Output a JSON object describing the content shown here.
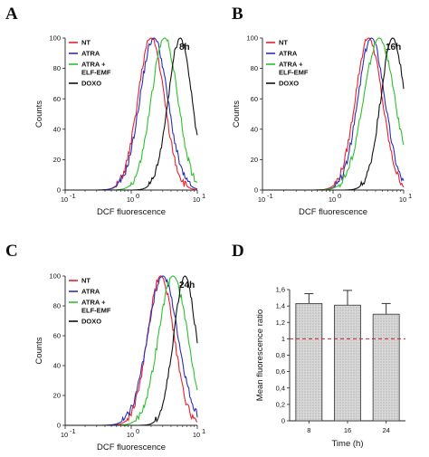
{
  "colors": {
    "NT": "#e8202a",
    "ATRA": "#2b2fb8",
    "ATRA_ELF": "#2fbf2f",
    "DOXO": "#111111",
    "bar_fill": "#d8d8d8",
    "reference_line": "#d42020"
  },
  "chart_data": [
    {
      "panel": "A",
      "type": "line",
      "time_label": "8h",
      "xlabel": "DCF fluorescence",
      "ylabel": "Counts",
      "x_scale": "log",
      "xlim": [
        0.1,
        10
      ],
      "ylim": [
        0,
        100
      ],
      "x_ticks": [
        "10",
        "10",
        "10"
      ],
      "x_tick_exponents": [
        "-1",
        "0",
        "1"
      ],
      "y_ticks": [
        "0",
        "20",
        "40",
        "60",
        "80",
        "100"
      ],
      "grid": false,
      "legend_position": "top-left",
      "series": [
        {
          "name": "NT",
          "color_key": "NT",
          "peak": 2.0,
          "width": 0.2,
          "peak_count": 100
        },
        {
          "name": "ATRA",
          "color_key": "ATRA",
          "peak": 2.2,
          "width": 0.21,
          "peak_count": 100
        },
        {
          "name": "ATRA + ELF-EMF",
          "legend_lines": [
            "ATRA +",
            "ELF-EMF"
          ],
          "color_key": "ATRA_ELF",
          "peak": 3.2,
          "width": 0.2,
          "peak_count": 100
        },
        {
          "name": "DOXO",
          "color_key": "DOXO",
          "peak": 5.5,
          "width": 0.18,
          "peak_count": 100
        }
      ]
    },
    {
      "panel": "B",
      "type": "line",
      "time_label": "16h",
      "xlabel": "DCF fluorescence",
      "ylabel": "Counts",
      "x_scale": "log",
      "xlim": [
        0.1,
        10
      ],
      "ylim": [
        0,
        100
      ],
      "x_ticks": [
        "10",
        "10",
        "10"
      ],
      "x_tick_exponents": [
        "-1",
        "0",
        "1"
      ],
      "y_ticks": [
        "0",
        "20",
        "40",
        "60",
        "80",
        "100"
      ],
      "grid": false,
      "legend_position": "top-left",
      "series": [
        {
          "name": "NT",
          "color_key": "NT",
          "peak": 3.2,
          "width": 0.19,
          "peak_count": 100
        },
        {
          "name": "ATRA",
          "color_key": "ATRA",
          "peak": 3.5,
          "width": 0.19,
          "peak_count": 100
        },
        {
          "name": "ATRA + ELF-EMF",
          "legend_lines": [
            "ATRA +",
            "ELF-EMF"
          ],
          "color_key": "ATRA_ELF",
          "peak": 4.5,
          "width": 0.22,
          "peak_count": 100
        },
        {
          "name": "DOXO",
          "color_key": "DOXO",
          "peak": 7.0,
          "width": 0.17,
          "peak_count": 100
        }
      ]
    },
    {
      "panel": "C",
      "type": "line",
      "time_label": "24h",
      "xlabel": "DCF fluorescence",
      "ylabel": "Counts",
      "x_scale": "log",
      "xlim": [
        0.1,
        10
      ],
      "ylim": [
        0,
        100
      ],
      "x_ticks": [
        "10",
        "10",
        "10"
      ],
      "x_tick_exponents": [
        "-1",
        "0",
        "1"
      ],
      "y_ticks": [
        "0",
        "20",
        "40",
        "60",
        "80",
        "100"
      ],
      "grid": false,
      "legend_position": "top-left",
      "series": [
        {
          "name": "NT",
          "color_key": "NT",
          "peak": 2.8,
          "width": 0.2,
          "peak_count": 100
        },
        {
          "name": "ATRA",
          "color_key": "ATRA",
          "peak": 3.0,
          "width": 0.23,
          "peak_count": 100
        },
        {
          "name": "ATRA + ELF-EMF",
          "legend_lines": [
            "ATRA +",
            "ELF-EMF"
          ],
          "color_key": "ATRA_ELF",
          "peak": 4.3,
          "width": 0.22,
          "peak_count": 100
        },
        {
          "name": "DOXO",
          "color_key": "DOXO",
          "peak": 6.5,
          "width": 0.17,
          "peak_count": 100
        }
      ]
    },
    {
      "panel": "D",
      "type": "bar",
      "xlabel": "Time (h)",
      "ylabel": "Mean fluorescence ratio",
      "categories": [
        "8",
        "16",
        "24"
      ],
      "values": [
        1.43,
        1.41,
        1.3
      ],
      "errors": [
        0.12,
        0.18,
        0.13
      ],
      "ylim": [
        0,
        1.6
      ],
      "y_ticks": [
        "0",
        "0,2",
        "0,4",
        "0,6",
        "0,8",
        "1",
        "1,2",
        "1,4",
        "1,6"
      ],
      "reference_line": 1,
      "grid": false
    }
  ]
}
